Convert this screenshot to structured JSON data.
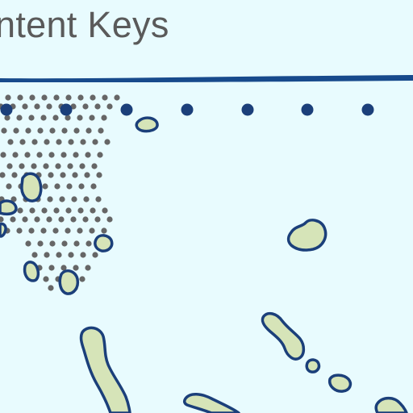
{
  "title": "ntent Keys",
  "colors": {
    "background": "#e8fbfe",
    "border_line": "#174a8c",
    "island_fill": "#d6e4b8",
    "island_stroke": "#1b3f7a",
    "reef_dot": "#666666",
    "boundary_dot": "#1b3f7a",
    "title_text": "#5a5a5a"
  },
  "map": {
    "features": [
      "key-island",
      "reef-dot-area",
      "boundary-dotted-line",
      "top-border-line"
    ]
  }
}
